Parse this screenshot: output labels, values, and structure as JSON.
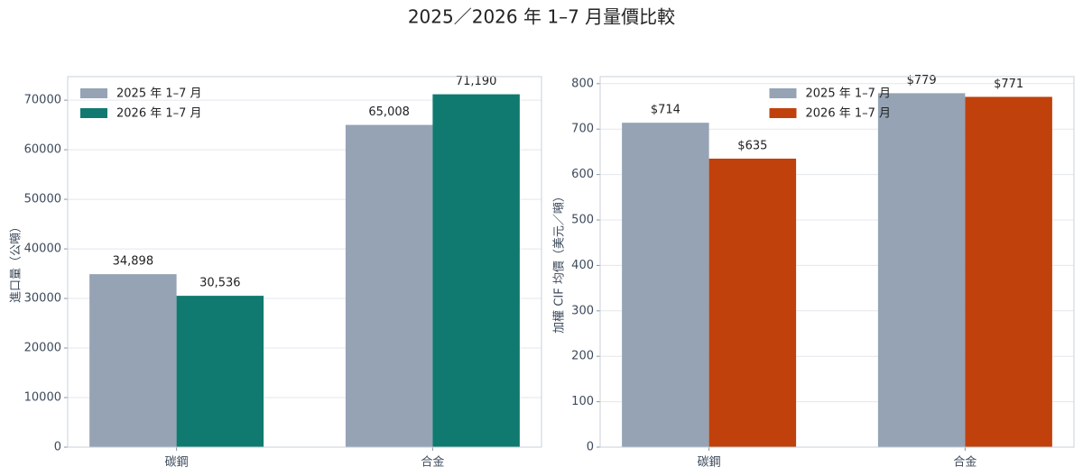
{
  "title": "2025／2026 年 1–7 月量價比較",
  "chart_data": [
    {
      "type": "bar",
      "ylabel": "進口量（公噸）",
      "categories": [
        "碳鋼",
        "合金"
      ],
      "series": [
        {
          "name": "2025 年 1–7 月",
          "color": "#95a3b5",
          "values": [
            34898,
            65008
          ],
          "value_labels": [
            "34,898",
            "65,008"
          ]
        },
        {
          "name": "2026 年 1–7 月",
          "color": "#107a70",
          "values": [
            30536,
            71190
          ],
          "value_labels": [
            "30,536",
            "71,190"
          ]
        }
      ],
      "ylim": [
        0,
        74750
      ],
      "yticks": [
        0,
        10000,
        20000,
        30000,
        40000,
        50000,
        60000,
        70000
      ],
      "grid": true,
      "legend": "upper left"
    },
    {
      "type": "bar",
      "ylabel": "加權 CIF 均價（美元／噸）",
      "categories": [
        "碳鋼",
        "合金"
      ],
      "series": [
        {
          "name": "2025 年 1–7 月",
          "color": "#95a3b5",
          "values": [
            714,
            779
          ],
          "value_labels": [
            "$714",
            "$779"
          ]
        },
        {
          "name": "2026 年 1–7 月",
          "color": "#c0410c",
          "values": [
            635,
            771
          ],
          "value_labels": [
            "$635",
            "$771"
          ]
        }
      ],
      "ylim": [
        0,
        815.5
      ],
      "yticks": [
        0,
        100,
        200,
        300,
        400,
        500,
        600,
        700,
        800
      ],
      "grid": true,
      "legend": "upper center"
    }
  ]
}
